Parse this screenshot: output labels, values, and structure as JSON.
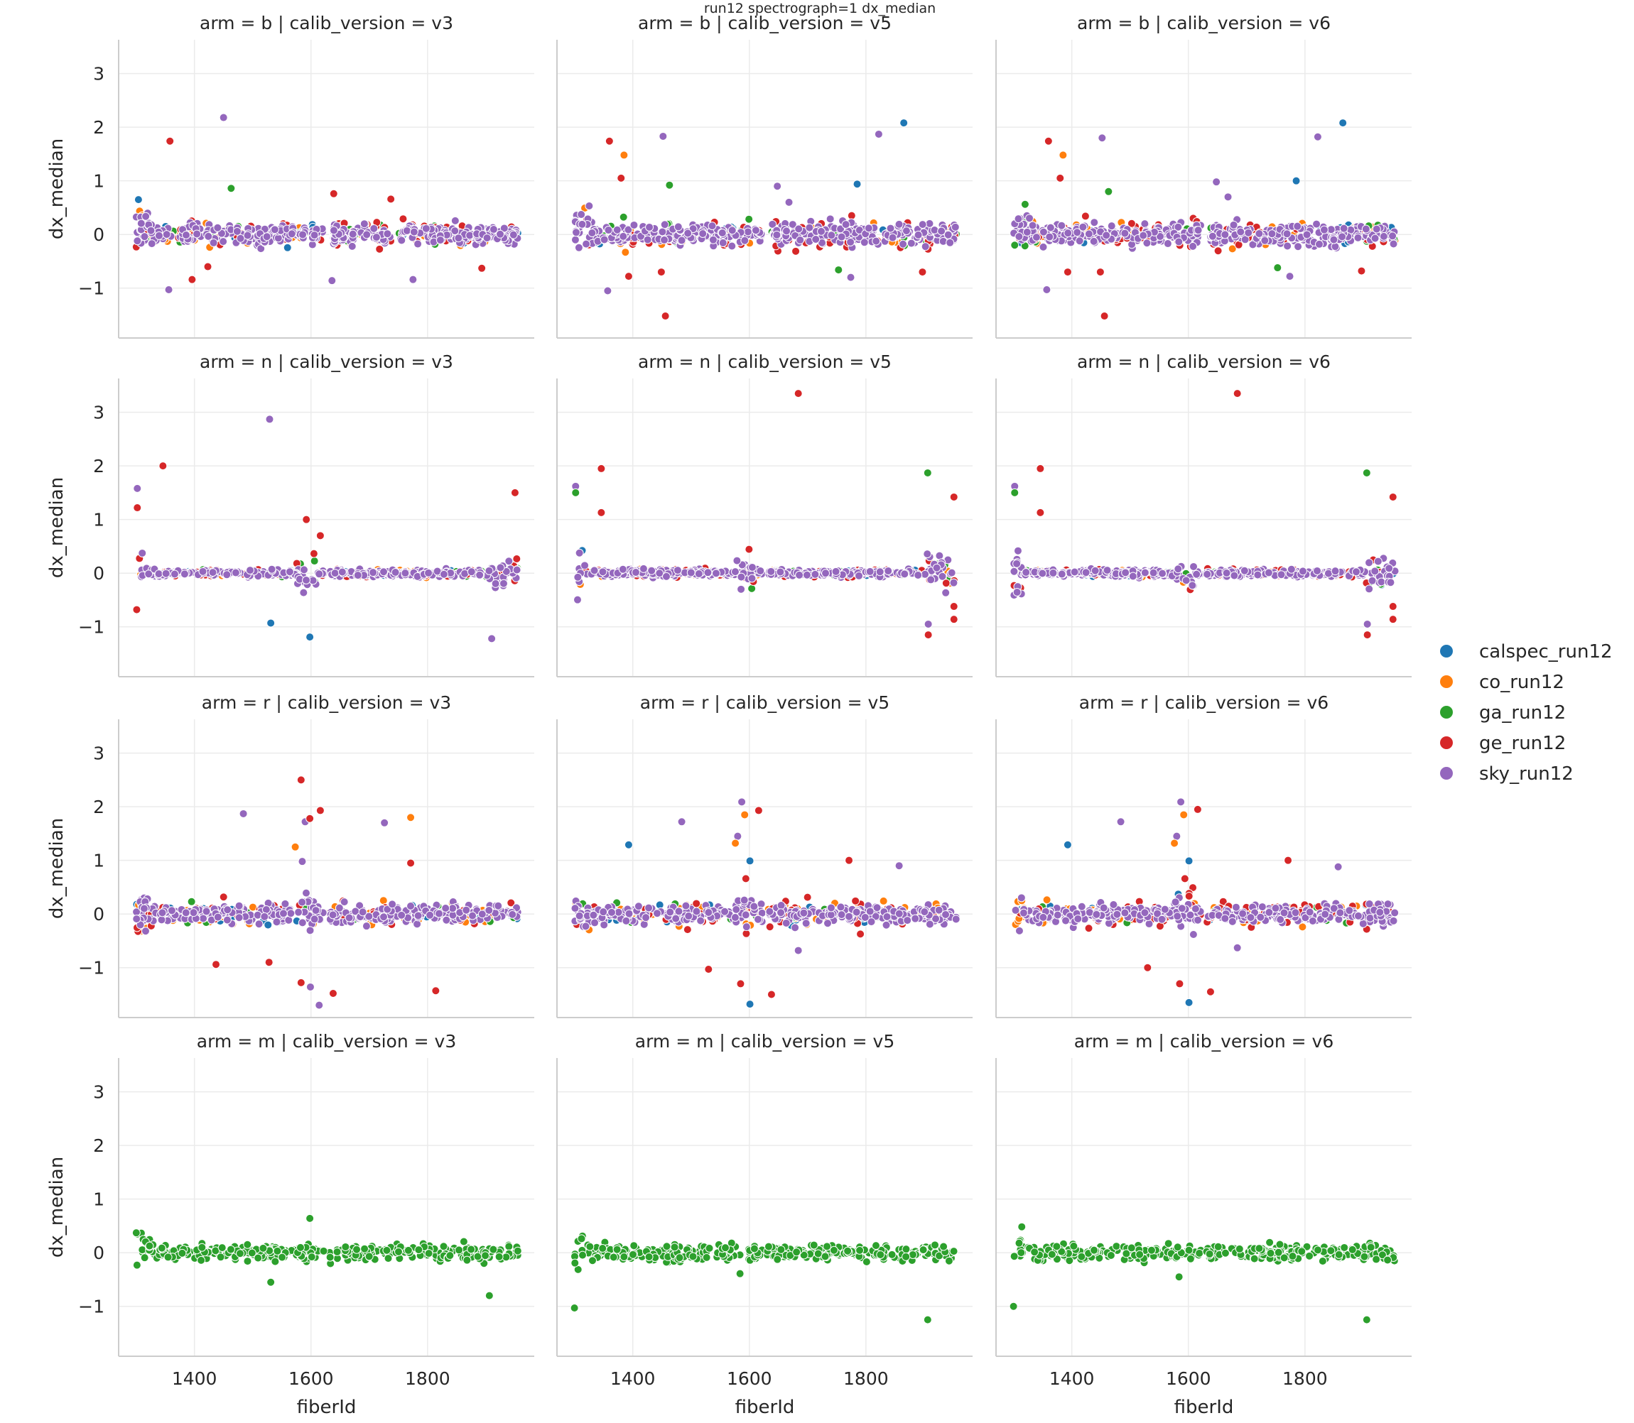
{
  "chart_data": {
    "type": "scatter",
    "title": "run12 spectrograph=1 dx_median",
    "xlabel": "fiberId",
    "ylabel": "dx_median",
    "xlim": [
      1270,
      1983
    ],
    "ylim": [
      -1.93,
      3.63
    ],
    "xticks": [
      1400,
      1600,
      1800
    ],
    "yticks": [
      -1,
      0,
      1,
      2,
      3
    ],
    "grid": true,
    "legend_position": "right",
    "series": [
      {
        "name": "calspec_run12",
        "color": "#1f77b4"
      },
      {
        "name": "co_run12",
        "color": "#ff7f0e"
      },
      {
        "name": "ga_run12",
        "color": "#2ca02c"
      },
      {
        "name": "ge_run12",
        "color": "#d62728"
      },
      {
        "name": "sky_run12",
        "color": "#9467bd"
      }
    ],
    "rows": [
      {
        "arm": "b",
        "band": {
          "x_range": [
            1300,
            1955
          ],
          "gap": [
            1622,
            1638
          ],
          "series": {
            "calspec_run12": [
              25,
              0.13
            ],
            "co_run12": [
              35,
              0.14
            ],
            "ga_run12": [
              25,
              0.14
            ],
            "ge_run12": [
              70,
              0.17
            ],
            "sky_run12": [
              380,
              0.12
            ]
          },
          "bursts": [
            [
              1300,
              1330,
              1.8
            ]
          ]
        }
      },
      {
        "arm": "n",
        "band": {
          "x_range": [
            1300,
            1955
          ],
          "gap": [
            1622,
            1632
          ],
          "series": {
            "calspec_run12": [
              20,
              0.04
            ],
            "co_run12": [
              40,
              0.04
            ],
            "ga_run12": [
              25,
              0.04
            ],
            "ge_run12": [
              60,
              0.05
            ],
            "sky_run12": [
              330,
              0.04
            ]
          },
          "bursts": [
            [
              1300,
              1318,
              6
            ],
            [
              1575,
              1610,
              5
            ],
            [
              1905,
              1955,
              5
            ]
          ]
        }
      },
      {
        "arm": "r",
        "band": {
          "x_range": [
            1300,
            1955
          ],
          "gap": [
            1622,
            1632
          ],
          "series": {
            "calspec_run12": [
              30,
              0.12
            ],
            "co_run12": [
              50,
              0.15
            ],
            "ga_run12": [
              20,
              0.12
            ],
            "ge_run12": [
              60,
              0.16
            ],
            "sky_run12": [
              320,
              0.11
            ]
          },
          "bursts": [
            [
              1300,
              1320,
              2
            ],
            [
              1575,
              1610,
              2
            ]
          ]
        }
      },
      {
        "arm": "m",
        "band": {
          "x_range": [
            1300,
            1955
          ],
          "gap": [
            1622,
            1630
          ],
          "series": {
            "ga_run12": [
              330,
              0.09
            ]
          },
          "bursts": [
            [
              1300,
              1320,
              2.6
            ]
          ]
        }
      }
    ],
    "columns": [
      "v3",
      "v5",
      "v6"
    ],
    "panels": [
      {
        "title": "arm = b | calib_version = v3",
        "row": 0,
        "col": 0,
        "outliers": [
          [
            "sky_run12",
            1450,
            2.18
          ],
          [
            "ge_run12",
            1358,
            1.74
          ],
          [
            "ga_run12",
            1463,
            0.86
          ],
          [
            "sky_run12",
            1356,
            -1.03
          ],
          [
            "sky_run12",
            1636,
            -0.86
          ],
          [
            "sky_run12",
            1775,
            -0.84
          ],
          [
            "ge_run12",
            1396,
            -0.84
          ],
          [
            "ge_run12",
            1423,
            -0.6
          ],
          [
            "ge_run12",
            1639,
            0.76
          ],
          [
            "ge_run12",
            1737,
            0.66
          ],
          [
            "ge_run12",
            1893,
            -0.63
          ],
          [
            "calspec_run12",
            1304,
            0.65
          ]
        ]
      },
      {
        "title": "arm = b | calib_version = v5",
        "row": 0,
        "col": 1,
        "outliers": [
          [
            "ge_run12",
            1360,
            1.74
          ],
          [
            "co_run12",
            1385,
            1.48
          ],
          [
            "ge_run12",
            1380,
            1.05
          ],
          [
            "sky_run12",
            1452,
            1.83
          ],
          [
            "ga_run12",
            1463,
            0.92
          ],
          [
            "sky_run12",
            1648,
            0.9
          ],
          [
            "sky_run12",
            1668,
            0.6
          ],
          [
            "calspec_run12",
            1785,
            0.94
          ],
          [
            "sky_run12",
            1822,
            1.87
          ],
          [
            "calspec_run12",
            1865,
            2.08
          ],
          [
            "ge_run12",
            1456,
            -1.52
          ],
          [
            "sky_run12",
            1357,
            -1.05
          ],
          [
            "ge_run12",
            1393,
            -0.78
          ],
          [
            "ge_run12",
            1449,
            -0.7
          ],
          [
            "ga_run12",
            1753,
            -0.66
          ],
          [
            "sky_run12",
            1774,
            -0.8
          ],
          [
            "ge_run12",
            1897,
            -0.7
          ]
        ]
      },
      {
        "title": "arm = b | calib_version = v6",
        "row": 0,
        "col": 2,
        "outliers": [
          [
            "ge_run12",
            1360,
            1.74
          ],
          [
            "co_run12",
            1385,
            1.48
          ],
          [
            "ge_run12",
            1380,
            1.05
          ],
          [
            "sky_run12",
            1452,
            1.8
          ],
          [
            "ga_run12",
            1463,
            0.8
          ],
          [
            "sky_run12",
            1648,
            0.98
          ],
          [
            "sky_run12",
            1668,
            0.7
          ],
          [
            "calspec_run12",
            1785,
            1.0
          ],
          [
            "sky_run12",
            1822,
            1.82
          ],
          [
            "calspec_run12",
            1865,
            2.08
          ],
          [
            "ge_run12",
            1456,
            -1.52
          ],
          [
            "sky_run12",
            1357,
            -1.03
          ],
          [
            "ge_run12",
            1393,
            -0.7
          ],
          [
            "ge_run12",
            1449,
            -0.7
          ],
          [
            "ga_run12",
            1753,
            -0.62
          ],
          [
            "sky_run12",
            1774,
            -0.78
          ],
          [
            "ge_run12",
            1897,
            -0.68
          ]
        ]
      },
      {
        "title": "arm = n | calib_version = v3",
        "row": 1,
        "col": 0,
        "outliers": [
          [
            "sky_run12",
            1529,
            2.87
          ],
          [
            "ge_run12",
            1346,
            2.0
          ],
          [
            "ge_run12",
            1592,
            1.0
          ],
          [
            "calspec_run12",
            1531,
            -0.93
          ],
          [
            "calspec_run12",
            1598,
            -1.19
          ],
          [
            "ge_run12",
            1301,
            -0.68
          ],
          [
            "ge_run12",
            1616,
            0.7
          ],
          [
            "sky_run12",
            1302,
            1.58
          ],
          [
            "ge_run12",
            1302,
            1.22
          ],
          [
            "ge_run12",
            1950,
            1.5
          ],
          [
            "sky_run12",
            1910,
            -1.22
          ]
        ]
      },
      {
        "title": "arm = n | calib_version = v5",
        "row": 1,
        "col": 1,
        "outliers": [
          [
            "ge_run12",
            1684,
            3.35
          ],
          [
            "ge_run12",
            1346,
            1.95
          ],
          [
            "ge_run12",
            1346,
            1.13
          ],
          [
            "ga_run12",
            1906,
            1.87
          ],
          [
            "ge_run12",
            1951,
            -0.62
          ],
          [
            "ge_run12",
            1951,
            -0.86
          ],
          [
            "sky_run12",
            1302,
            1.62
          ],
          [
            "ga_run12",
            1302,
            1.5
          ],
          [
            "ge_run12",
            1951,
            1.42
          ],
          [
            "ge_run12",
            1907,
            -1.15
          ],
          [
            "sky_run12",
            1907,
            -0.95
          ]
        ]
      },
      {
        "title": "arm = n | calib_version = v6",
        "row": 1,
        "col": 2,
        "outliers": [
          [
            "ge_run12",
            1684,
            3.35
          ],
          [
            "ge_run12",
            1346,
            1.95
          ],
          [
            "ge_run12",
            1346,
            1.13
          ],
          [
            "ga_run12",
            1906,
            1.87
          ],
          [
            "ge_run12",
            1951,
            -0.62
          ],
          [
            "ge_run12",
            1951,
            -0.86
          ],
          [
            "sky_run12",
            1302,
            1.62
          ],
          [
            "ga_run12",
            1302,
            1.5
          ],
          [
            "ge_run12",
            1951,
            1.42
          ],
          [
            "ge_run12",
            1907,
            -1.15
          ],
          [
            "sky_run12",
            1907,
            -0.95
          ]
        ]
      },
      {
        "title": "arm = r | calib_version = v3",
        "row": 2,
        "col": 0,
        "outliers": [
          [
            "sky_run12",
            1484,
            1.87
          ],
          [
            "ge_run12",
            1583,
            2.5
          ],
          [
            "ge_run12",
            1616,
            1.93
          ],
          [
            "sky_run12",
            1726,
            1.7
          ],
          [
            "co_run12",
            1771,
            1.8
          ],
          [
            "ge_run12",
            1771,
            0.95
          ],
          [
            "co_run12",
            1573,
            1.25
          ],
          [
            "sky_run12",
            1585,
            0.98
          ],
          [
            "ge_run12",
            1437,
            -0.94
          ],
          [
            "ge_run12",
            1528,
            -0.9
          ],
          [
            "ge_run12",
            1638,
            -1.48
          ],
          [
            "sky_run12",
            1614,
            -1.7
          ],
          [
            "ge_run12",
            1814,
            -1.43
          ],
          [
            "sky_run12",
            1599,
            -1.36
          ],
          [
            "ge_run12",
            1583,
            -1.28
          ],
          [
            "sky_run12",
            1590,
            1.72
          ],
          [
            "ge_run12",
            1598,
            1.78
          ]
        ]
      },
      {
        "title": "arm = r | calib_version = v5",
        "row": 2,
        "col": 1,
        "outliers": [
          [
            "calspec_run12",
            1393,
            1.29
          ],
          [
            "sky_run12",
            1484,
            1.72
          ],
          [
            "sky_run12",
            1587,
            2.09
          ],
          [
            "co_run12",
            1592,
            1.85
          ],
          [
            "ge_run12",
            1616,
            1.93
          ],
          [
            "calspec_run12",
            1601,
            0.99
          ],
          [
            "ge_run12",
            1771,
            1.0
          ],
          [
            "sky_run12",
            1857,
            0.9
          ],
          [
            "calspec_run12",
            1601,
            -1.68
          ],
          [
            "ge_run12",
            1638,
            -1.5
          ],
          [
            "ge_run12",
            1530,
            -1.03
          ],
          [
            "sky_run12",
            1684,
            -0.68
          ],
          [
            "ge_run12",
            1585,
            -1.3
          ],
          [
            "sky_run12",
            1580,
            1.45
          ],
          [
            "co_run12",
            1576,
            1.32
          ],
          [
            "ge_run12",
            1594,
            0.66
          ]
        ]
      },
      {
        "title": "arm = r | calib_version = v6",
        "row": 2,
        "col": 2,
        "outliers": [
          [
            "calspec_run12",
            1393,
            1.29
          ],
          [
            "sky_run12",
            1484,
            1.72
          ],
          [
            "sky_run12",
            1587,
            2.09
          ],
          [
            "co_run12",
            1592,
            1.85
          ],
          [
            "ge_run12",
            1616,
            1.95
          ],
          [
            "calspec_run12",
            1601,
            0.99
          ],
          [
            "ge_run12",
            1771,
            1.0
          ],
          [
            "sky_run12",
            1857,
            0.88
          ],
          [
            "calspec_run12",
            1601,
            -1.65
          ],
          [
            "ge_run12",
            1638,
            -1.45
          ],
          [
            "ge_run12",
            1530,
            -1.0
          ],
          [
            "sky_run12",
            1684,
            -0.63
          ],
          [
            "ge_run12",
            1585,
            -1.3
          ],
          [
            "sky_run12",
            1580,
            1.45
          ],
          [
            "co_run12",
            1576,
            1.32
          ],
          [
            "ge_run12",
            1594,
            0.66
          ]
        ]
      },
      {
        "title": "arm = m | calib_version = v3",
        "row": 3,
        "col": 0,
        "outliers": [
          [
            "ga_run12",
            1598,
            0.64
          ],
          [
            "ga_run12",
            1531,
            -0.55
          ],
          [
            "ga_run12",
            1906,
            -0.8
          ]
        ]
      },
      {
        "title": "arm = m | calib_version = v5",
        "row": 3,
        "col": 1,
        "outliers": [
          [
            "ga_run12",
            1300,
            -1.03
          ],
          [
            "ga_run12",
            1584,
            -0.39
          ],
          [
            "ga_run12",
            1906,
            -1.25
          ]
        ]
      },
      {
        "title": "arm = m | calib_version = v6",
        "row": 3,
        "col": 2,
        "outliers": [
          [
            "ga_run12",
            1300,
            -1.0
          ],
          [
            "ga_run12",
            1584,
            -0.45
          ],
          [
            "ga_run12",
            1906,
            -1.25
          ]
        ]
      }
    ]
  }
}
